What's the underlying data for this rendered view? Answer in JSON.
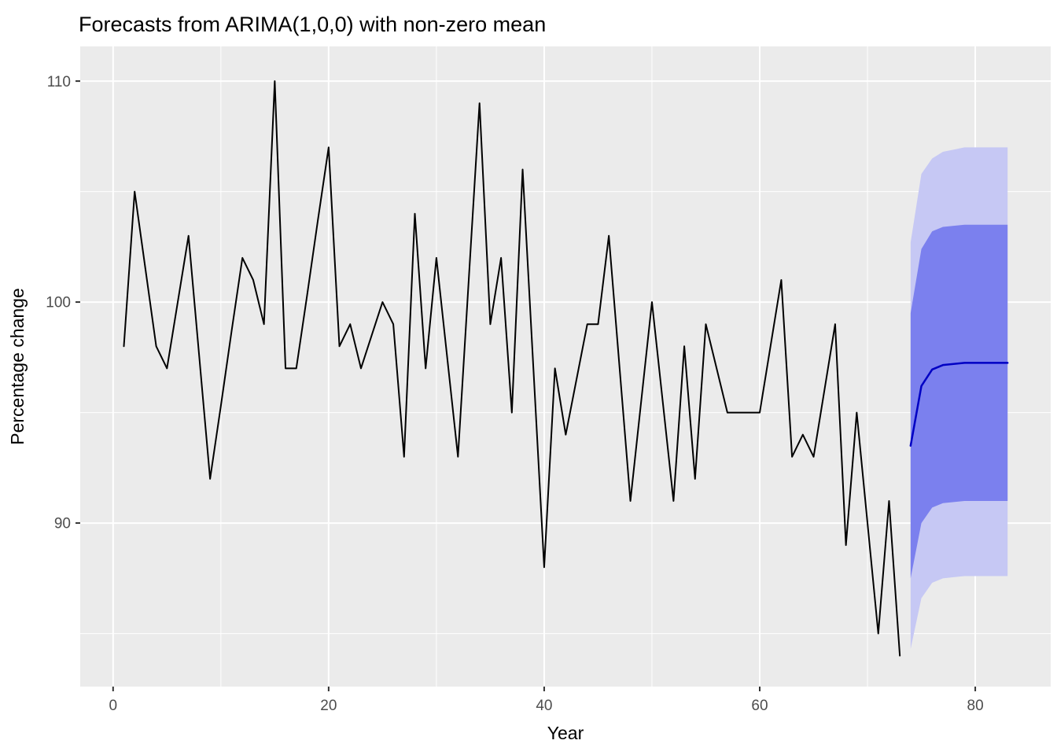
{
  "chart_data": {
    "type": "line",
    "title": "Forecasts from ARIMA(1,0,0) with non-zero mean",
    "xlabel": "Year",
    "ylabel": "Percentage change",
    "xlim": [
      -3.05,
      87.0
    ],
    "ylim": [
      82.6,
      111.57
    ],
    "x_major_ticks": [
      0,
      20,
      40,
      60,
      80
    ],
    "x_minor_ticks": [
      10,
      30,
      50,
      70
    ],
    "y_major_ticks": [
      90,
      100,
      110
    ],
    "y_minor_ticks": [
      85,
      95,
      105
    ],
    "grid": true,
    "legend_position": "none",
    "observed": {
      "x_start": 1,
      "values": [
        98,
        105,
        101.5,
        98,
        97,
        100,
        103,
        97.5,
        92,
        95.3,
        98.7,
        102,
        101,
        99,
        110,
        97,
        97,
        100.3,
        103.7,
        107,
        98,
        99,
        97,
        98.5,
        100,
        99,
        93,
        104,
        97,
        102,
        97.5,
        93,
        101,
        109,
        99,
        102,
        95,
        106,
        97,
        88,
        97,
        94,
        96.5,
        99,
        99,
        103,
        97,
        91,
        95.5,
        100,
        95.5,
        91,
        98,
        92,
        99,
        97,
        95,
        95,
        95,
        95,
        98,
        101,
        93,
        94,
        93,
        96,
        99,
        89,
        95,
        90,
        85,
        91,
        84
      ]
    },
    "forecast": {
      "x_start": 74,
      "mean": [
        93.5,
        96.2,
        96.95,
        97.15,
        97.2,
        97.25,
        97.25,
        97.25,
        97.25,
        97.25
      ],
      "lo80": [
        87.5,
        90.0,
        90.7,
        90.9,
        90.95,
        91.0,
        91.0,
        91.0,
        91.0,
        91.0
      ],
      "hi80": [
        99.5,
        102.4,
        103.2,
        103.4,
        103.45,
        103.5,
        103.5,
        103.5,
        103.5,
        103.5
      ],
      "lo95": [
        84.3,
        86.6,
        87.3,
        87.5,
        87.55,
        87.6,
        87.6,
        87.6,
        87.6,
        87.6
      ],
      "hi95": [
        102.7,
        105.8,
        106.5,
        106.8,
        106.9,
        107.0,
        107.0,
        107.0,
        107.0,
        107.0
      ],
      "interval_levels": [
        "80",
        "95"
      ]
    },
    "colors": {
      "observed_line": "#000000",
      "forecast_line": "#0000C4",
      "interval_80": "#7B80EE",
      "interval_95": "#C6C8F4",
      "panel_background": "#EBEBEB",
      "gridline_major": "#FFFFFF",
      "gridline_minor": "#FFFFFF",
      "tick_mark": "#333333",
      "tick_label": "#4d4d4d",
      "title_text": "#000000"
    }
  }
}
